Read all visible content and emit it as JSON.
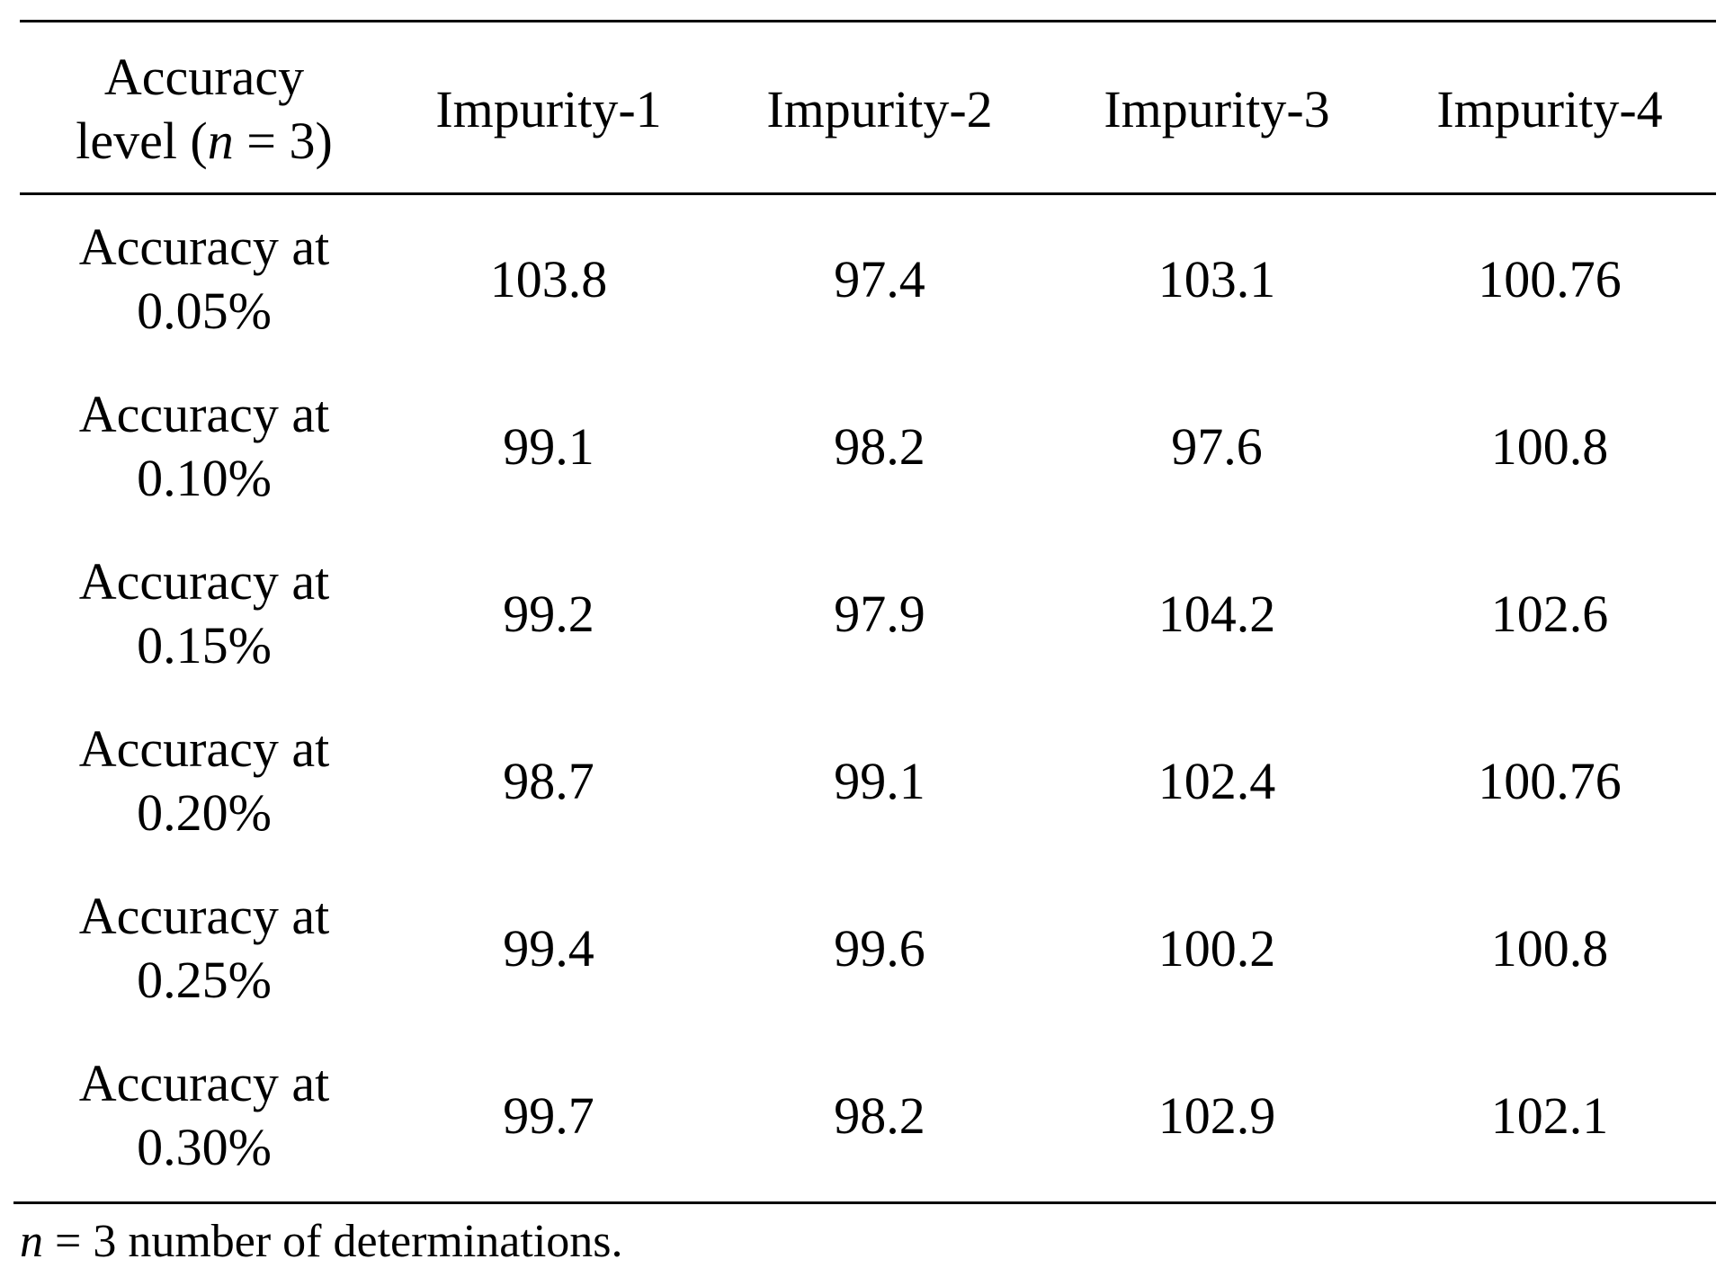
{
  "table": {
    "header": {
      "stub_line1": "Accuracy",
      "stub_line2_pre": "level (",
      "stub_line2_var": "n",
      "stub_line2_post": " = 3)",
      "columns": [
        "Impurity-1",
        "Impurity-2",
        "Impurity-3",
        "Impurity-4"
      ]
    },
    "rows": [
      {
        "label_line1": "Accuracy at",
        "label_line2": "0.05%",
        "values": [
          "103.8",
          "97.4",
          "103.1",
          "100.76"
        ]
      },
      {
        "label_line1": "Accuracy at",
        "label_line2": "0.10%",
        "values": [
          "99.1",
          "98.2",
          "97.6",
          "100.8"
        ]
      },
      {
        "label_line1": "Accuracy at",
        "label_line2": "0.15%",
        "values": [
          "99.2",
          "97.9",
          "104.2",
          "102.6"
        ]
      },
      {
        "label_line1": "Accuracy at",
        "label_line2": "0.20%",
        "values": [
          "98.7",
          "99.1",
          "102.4",
          "100.76"
        ]
      },
      {
        "label_line1": "Accuracy at",
        "label_line2": "0.25%",
        "values": [
          "99.4",
          "99.6",
          "100.2",
          "100.8"
        ]
      },
      {
        "label_line1": "Accuracy at",
        "label_line2": "0.30%",
        "values": [
          "99.7",
          "98.2",
          "102.9",
          "102.1"
        ]
      }
    ]
  },
  "footnote": {
    "var": "n",
    "text": " = 3 number of determinations."
  }
}
